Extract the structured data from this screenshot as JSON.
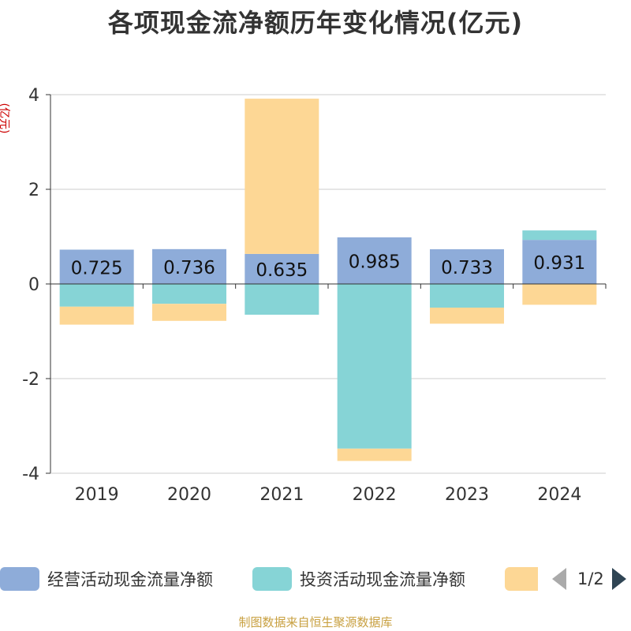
{
  "title": "各项现金流净额历年变化情况(亿元)",
  "unit_label": "(亿元)",
  "source": "制图数据来自恒生聚源数据库",
  "legend": {
    "items": [
      {
        "label": "经营活动现金流量净额",
        "color": "#8eacd9"
      },
      {
        "label": "投资活动现金流量净额",
        "color": "#86d4d6"
      },
      {
        "label": "",
        "color": "#fdd795"
      }
    ],
    "page": "1/2"
  },
  "chart_data": {
    "type": "bar",
    "stacked": true,
    "categories": [
      "2019",
      "2020",
      "2021",
      "2022",
      "2023",
      "2024"
    ],
    "series": [
      {
        "name": "经营活动现金流量净额",
        "values": [
          0.725,
          0.736,
          0.635,
          0.985,
          0.733,
          0.931
        ]
      },
      {
        "name": "投资活动现金流量净额",
        "values": [
          -0.48,
          -0.42,
          -0.65,
          -3.48,
          -0.5,
          0.2
        ]
      },
      {
        "name": "",
        "values": [
          -0.38,
          -0.36,
          3.28,
          -0.26,
          -0.34,
          -0.44
        ]
      }
    ],
    "data_labels": [
      "0.725",
      "0.736",
      "0.635",
      "0.985",
      "0.733",
      "0.931"
    ],
    "yticks": [
      4,
      2,
      0,
      -2,
      -4
    ],
    "ylim": [
      -4,
      4
    ],
    "grid": true,
    "legend_position": "bottom"
  }
}
